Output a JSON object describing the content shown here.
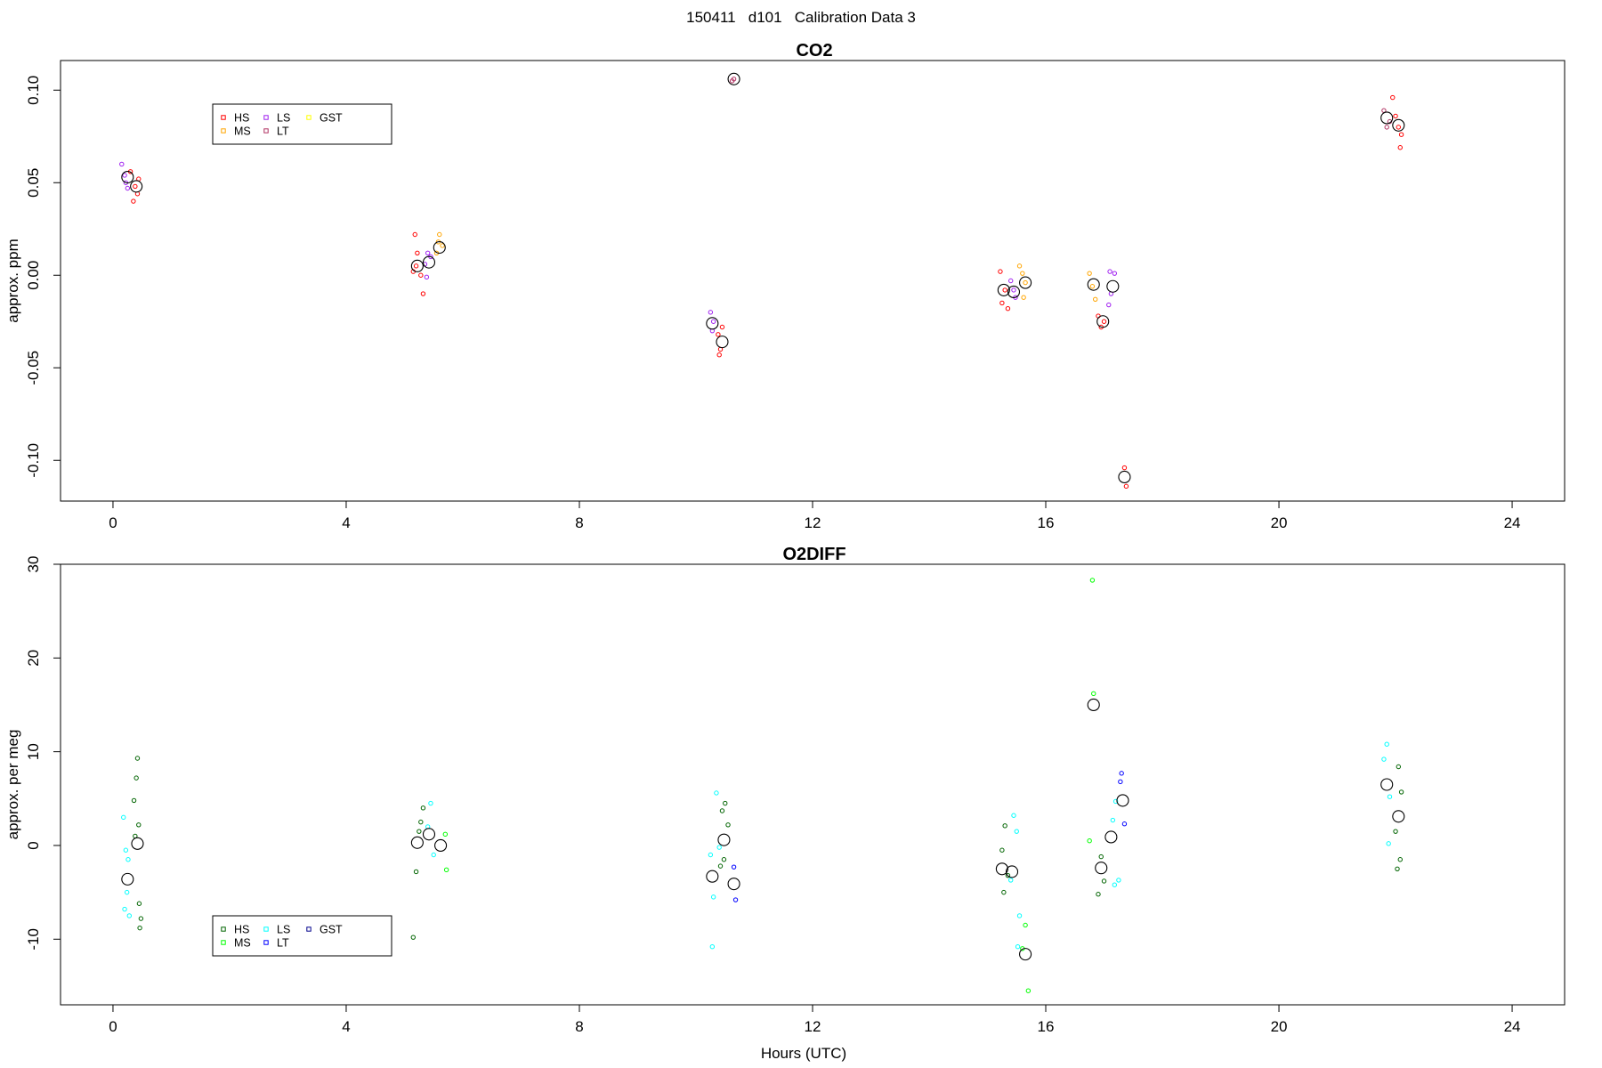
{
  "page_title": "150411   d101   Calibration Data 3",
  "x_axis_label": "Hours (UTC)",
  "chart_data": [
    {
      "type": "scatter",
      "title": "CO2",
      "xlabel": "",
      "ylabel": "approx. ppm",
      "xlim": [
        -0.9,
        24.9
      ],
      "ylim": [
        -0.122,
        0.116
      ],
      "x_ticks": [
        0,
        4,
        8,
        12,
        16,
        20,
        24
      ],
      "x_tick_labels": [
        "0",
        "4",
        "8",
        "12",
        "16",
        "20",
        "24"
      ],
      "y_ticks": [
        -0.1,
        -0.05,
        0.0,
        0.05,
        0.1
      ],
      "y_tick_labels": [
        "-0.10",
        "-0.05",
        "0.00",
        "0.05",
        "0.10"
      ],
      "grid": false,
      "legend_position": "top-left",
      "series": [
        {
          "name": "HS",
          "color": "#ff0000",
          "points": [
            [
              0.3,
              0.056
            ],
            [
              0.38,
              0.048
            ],
            [
              0.44,
              0.052
            ],
            [
              0.42,
              0.044
            ],
            [
              0.35,
              0.04
            ],
            [
              5.18,
              0.022
            ],
            [
              5.22,
              0.012
            ],
            [
              5.2,
              0.005
            ],
            [
              5.28,
              0.0
            ],
            [
              5.32,
              -0.01
            ],
            [
              5.15,
              0.002
            ],
            [
              10.45,
              -0.028
            ],
            [
              10.38,
              -0.032
            ],
            [
              10.42,
              -0.04
            ],
            [
              10.4,
              -0.043
            ],
            [
              15.22,
              0.002
            ],
            [
              15.3,
              -0.008
            ],
            [
              15.25,
              -0.015
            ],
            [
              15.35,
              -0.018
            ],
            [
              16.9,
              -0.022
            ],
            [
              16.95,
              -0.028
            ],
            [
              17.0,
              -0.025
            ],
            [
              21.95,
              0.096
            ],
            [
              22.0,
              0.086
            ],
            [
              22.05,
              0.08
            ],
            [
              22.1,
              0.076
            ],
            [
              22.08,
              0.069
            ],
            [
              17.35,
              -0.104
            ],
            [
              17.38,
              -0.114
            ]
          ]
        },
        {
          "name": "MS",
          "color": "#ffa500",
          "points": [
            [
              5.6,
              0.022
            ],
            [
              5.58,
              0.018
            ],
            [
              5.65,
              0.016
            ],
            [
              5.55,
              0.012
            ],
            [
              15.55,
              0.005
            ],
            [
              15.6,
              0.001
            ],
            [
              15.65,
              -0.004
            ],
            [
              15.62,
              -0.012
            ],
            [
              16.75,
              0.001
            ],
            [
              16.8,
              -0.006
            ],
            [
              16.85,
              -0.013
            ]
          ]
        },
        {
          "name": "LS",
          "color": "#a020f0",
          "points": [
            [
              0.15,
              0.06
            ],
            [
              0.2,
              0.054
            ],
            [
              0.25,
              0.047
            ],
            [
              0.22,
              0.05
            ],
            [
              5.4,
              0.012
            ],
            [
              5.45,
              0.01
            ],
            [
              5.35,
              0.006
            ],
            [
              5.38,
              -0.001
            ],
            [
              10.25,
              -0.02
            ],
            [
              10.3,
              -0.025
            ],
            [
              10.28,
              -0.03
            ],
            [
              15.4,
              -0.003
            ],
            [
              15.45,
              -0.008
            ],
            [
              15.48,
              -0.012
            ],
            [
              17.1,
              0.002
            ],
            [
              17.18,
              0.001
            ],
            [
              17.12,
              -0.01
            ],
            [
              17.08,
              -0.016
            ]
          ]
        },
        {
          "name": "LT",
          "color": "#b03060",
          "points": [
            [
              10.62,
              0.105
            ],
            [
              10.65,
              0.106
            ],
            [
              21.8,
              0.089
            ],
            [
              21.85,
              0.08
            ],
            [
              21.9,
              0.083
            ]
          ]
        },
        {
          "name": "GST",
          "color": "#ffff00",
          "points": []
        }
      ],
      "means": [
        [
          0.25,
          0.053
        ],
        [
          0.4,
          0.048
        ],
        [
          5.22,
          0.005
        ],
        [
          5.42,
          0.007
        ],
        [
          5.6,
          0.015
        ],
        [
          10.28,
          -0.026
        ],
        [
          10.45,
          -0.036
        ],
        [
          10.65,
          0.106
        ],
        [
          15.28,
          -0.008
        ],
        [
          15.45,
          -0.009
        ],
        [
          15.65,
          -0.004
        ],
        [
          16.82,
          -0.005
        ],
        [
          16.98,
          -0.025
        ],
        [
          17.15,
          -0.006
        ],
        [
          17.35,
          -0.109
        ],
        [
          21.85,
          0.085
        ],
        [
          22.05,
          0.081
        ]
      ]
    },
    {
      "type": "scatter",
      "title": "O2DIFF",
      "xlabel": "Hours (UTC)",
      "ylabel": "approx. per meg",
      "xlim": [
        -0.9,
        24.9
      ],
      "ylim": [
        -17,
        30
      ],
      "x_ticks": [
        0,
        4,
        8,
        12,
        16,
        20,
        24
      ],
      "x_tick_labels": [
        "0",
        "4",
        "8",
        "12",
        "16",
        "20",
        "24"
      ],
      "y_ticks": [
        -10,
        0,
        10,
        20,
        30
      ],
      "y_tick_labels": [
        "-10",
        "0",
        "10",
        "20",
        "30"
      ],
      "grid": false,
      "legend_position": "bottom-left",
      "series": [
        {
          "name": "HS",
          "color": "#006400",
          "points": [
            [
              0.42,
              9.3
            ],
            [
              0.4,
              7.2
            ],
            [
              0.36,
              4.8
            ],
            [
              0.44,
              2.2
            ],
            [
              0.38,
              1.0
            ],
            [
              0.45,
              -6.2
            ],
            [
              0.48,
              -7.8
            ],
            [
              0.46,
              -8.8
            ],
            [
              5.15,
              -9.8
            ],
            [
              5.2,
              -2.8
            ],
            [
              5.28,
              2.5
            ],
            [
              5.32,
              4.0
            ],
            [
              5.25,
              1.5
            ],
            [
              10.5,
              4.5
            ],
            [
              10.45,
              3.7
            ],
            [
              10.55,
              2.2
            ],
            [
              10.48,
              -1.5
            ],
            [
              10.42,
              -2.2
            ],
            [
              15.3,
              2.1
            ],
            [
              15.25,
              -0.5
            ],
            [
              15.35,
              -3.2
            ],
            [
              15.28,
              -5.0
            ],
            [
              16.95,
              -1.2
            ],
            [
              17.0,
              -3.8
            ],
            [
              16.9,
              -5.2
            ],
            [
              22.05,
              8.4
            ],
            [
              22.1,
              5.7
            ],
            [
              22.0,
              1.5
            ],
            [
              22.08,
              -1.5
            ],
            [
              22.03,
              -2.5
            ]
          ]
        },
        {
          "name": "MS",
          "color": "#00ff00",
          "points": [
            [
              5.7,
              1.2
            ],
            [
              5.72,
              -2.6
            ],
            [
              15.65,
              -8.5
            ],
            [
              15.6,
              -11.0
            ],
            [
              15.7,
              -15.5
            ],
            [
              16.8,
              28.3
            ],
            [
              16.82,
              16.2
            ],
            [
              16.75,
              0.5
            ]
          ]
        },
        {
          "name": "LS",
          "color": "#00ffff",
          "points": [
            [
              0.18,
              3.0
            ],
            [
              0.22,
              -0.5
            ],
            [
              0.26,
              -1.5
            ],
            [
              0.24,
              -5.0
            ],
            [
              0.2,
              -6.8
            ],
            [
              0.28,
              -7.5
            ],
            [
              5.45,
              4.5
            ],
            [
              5.4,
              2.0
            ],
            [
              5.5,
              -1.0
            ],
            [
              10.25,
              -1.0
            ],
            [
              10.3,
              -5.5
            ],
            [
              10.28,
              -10.8
            ],
            [
              10.35,
              5.6
            ],
            [
              10.4,
              -0.2
            ],
            [
              15.45,
              3.2
            ],
            [
              15.5,
              1.5
            ],
            [
              15.4,
              -3.7
            ],
            [
              15.55,
              -7.5
            ],
            [
              15.52,
              -10.8
            ],
            [
              17.2,
              4.7
            ],
            [
              17.15,
              2.7
            ],
            [
              17.25,
              -3.7
            ],
            [
              17.18,
              -4.2
            ],
            [
              21.85,
              10.8
            ],
            [
              21.8,
              9.2
            ],
            [
              21.9,
              5.2
            ],
            [
              21.88,
              0.2
            ]
          ]
        },
        {
          "name": "LT",
          "color": "#0000ff",
          "points": [
            [
              10.65,
              -2.3
            ],
            [
              10.68,
              -5.8
            ],
            [
              17.3,
              7.7
            ],
            [
              17.28,
              6.8
            ],
            [
              17.35,
              2.3
            ]
          ]
        },
        {
          "name": "GST",
          "color": "#00008b",
          "points": []
        }
      ],
      "means": [
        [
          0.25,
          -3.6
        ],
        [
          0.42,
          0.2
        ],
        [
          5.22,
          0.3
        ],
        [
          5.42,
          1.2
        ],
        [
          5.62,
          0.0
        ],
        [
          10.28,
          -3.3
        ],
        [
          10.48,
          0.6
        ],
        [
          10.65,
          -4.1
        ],
        [
          15.25,
          -2.5
        ],
        [
          15.42,
          -2.8
        ],
        [
          15.65,
          -11.6
        ],
        [
          16.82,
          15.0
        ],
        [
          16.95,
          -2.4
        ],
        [
          17.12,
          0.9
        ],
        [
          17.32,
          4.8
        ],
        [
          21.85,
          6.5
        ],
        [
          22.05,
          3.1
        ]
      ]
    }
  ],
  "colors": {
    "mean_marker": "#000000",
    "axis": "#000000",
    "background": "#ffffff"
  }
}
